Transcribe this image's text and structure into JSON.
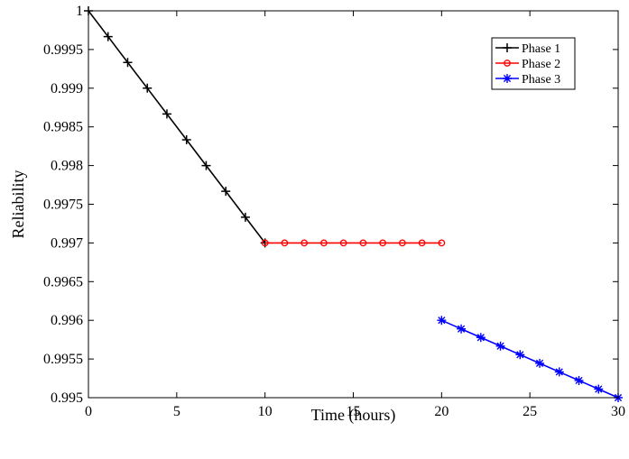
{
  "chart_data": {
    "type": "line",
    "title": "",
    "xlabel": "Time (hours)",
    "ylabel": "Reliability",
    "xlim": [
      0,
      30
    ],
    "ylim": [
      0.995,
      1
    ],
    "xticks": [
      0,
      5,
      10,
      15,
      20,
      25,
      30
    ],
    "xtick_labels": [
      "0",
      "5",
      "10",
      "15",
      "20",
      "25",
      "30"
    ],
    "yticks": [
      0.995,
      0.9955,
      0.996,
      0.9965,
      0.997,
      0.9975,
      0.998,
      0.9985,
      0.999,
      0.9995,
      1
    ],
    "ytick_labels": [
      "0.995",
      "0.9955",
      "0.996",
      "0.9965",
      "0.997",
      "0.9975",
      "0.998",
      "0.9985",
      "0.999",
      "0.9995",
      "1"
    ],
    "grid": false,
    "legend_position": "top-right",
    "series": [
      {
        "name": "Phase 1",
        "color": "#000000",
        "marker": "plus",
        "x": [
          0,
          1.111,
          2.222,
          3.333,
          4.444,
          5.556,
          6.667,
          7.778,
          8.889,
          10
        ],
        "y": [
          1.0,
          0.999667,
          0.999333,
          0.999,
          0.998667,
          0.998333,
          0.998,
          0.997667,
          0.997333,
          0.997
        ]
      },
      {
        "name": "Phase 2",
        "color": "#ff0000",
        "marker": "circle",
        "x": [
          10,
          11.111,
          12.222,
          13.333,
          14.444,
          15.556,
          16.667,
          17.778,
          18.889,
          20
        ],
        "y": [
          0.997,
          0.997,
          0.997,
          0.997,
          0.997,
          0.997,
          0.997,
          0.997,
          0.997,
          0.997
        ]
      },
      {
        "name": "Phase 3",
        "color": "#0000ff",
        "marker": "asterisk",
        "x": [
          20,
          21.111,
          22.222,
          23.333,
          24.444,
          25.556,
          26.667,
          27.778,
          28.889,
          30
        ],
        "y": [
          0.996,
          0.995889,
          0.995778,
          0.995667,
          0.995556,
          0.995444,
          0.995333,
          0.995222,
          0.995111,
          0.995
        ]
      }
    ]
  }
}
